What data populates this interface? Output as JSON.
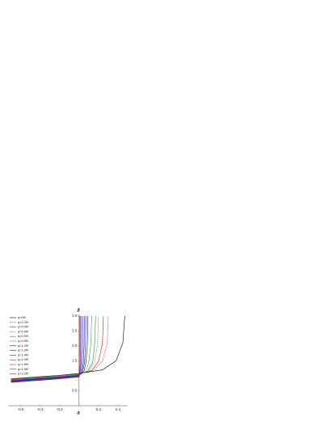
{
  "chart_data": {
    "type": "line",
    "x_label": "a",
    "y_label": "ã",
    "xlim": [
      -0.73,
      0.5
    ],
    "ylim": [
      0,
      3
    ],
    "xticks": [
      -0.6,
      -0.4,
      -0.2,
      0.2,
      0.4
    ],
    "yticks": [
      0.5,
      {
        "value": 1,
        "label": "1.0"
      },
      1.5,
      {
        "value": 2,
        "label": "2.0"
      },
      2.5,
      {
        "value": 3,
        "label": "3.0"
      }
    ],
    "legend": "upper left",
    "series": [
      {
        "name": "q=0M",
        "color": "#000000",
        "dashed": false,
        "x": [
          -0.7,
          -0.4,
          -0.2,
          0,
          0.24,
          0.38,
          0.45,
          0.47
        ],
        "values": [
          0.9,
          0.97,
          1.02,
          1.08,
          1.2,
          1.5,
          2.1,
          3.0
        ]
      },
      {
        "name": "q=0.2M",
        "color": "#d62020",
        "dashed": true,
        "x": [
          -0.7,
          -0.4,
          -0.2,
          0,
          0.15,
          0.24,
          0.29,
          0.3
        ],
        "values": [
          0.89,
          0.96,
          1.01,
          1.07,
          1.19,
          1.49,
          2.09,
          3.0
        ]
      },
      {
        "name": "q=0.4M",
        "color": "#c81e1e",
        "dashed": false,
        "x": [
          -0.7,
          -0.4,
          -0.2,
          0,
          0.13,
          0.2,
          0.24,
          0.25
        ],
        "values": [
          0.88,
          0.95,
          1.0,
          1.06,
          1.18,
          1.48,
          2.08,
          3.0
        ]
      },
      {
        "name": "q=0.5M",
        "color": "#2e9e3e",
        "dashed": true,
        "x": [
          -0.7,
          -0.4,
          -0.2,
          0,
          0.1,
          0.16,
          0.19,
          0.2
        ],
        "values": [
          0.87,
          0.94,
          0.99,
          1.05,
          1.17,
          1.47,
          2.07,
          3.0
        ]
      },
      {
        "name": "q=0.6M",
        "color": "#2a9a3a",
        "dashed": false,
        "x": [
          -0.7,
          -0.4,
          -0.2,
          0,
          0.09,
          0.14,
          0.16,
          0.17
        ],
        "values": [
          0.86,
          0.93,
          0.98,
          1.04,
          1.16,
          1.46,
          2.06,
          3.0
        ]
      },
      {
        "name": "q=0.8M",
        "color": "#3aaa4a",
        "dashed": false,
        "x": [
          -0.7,
          -0.4,
          -0.2,
          0,
          0.07,
          0.1,
          0.12,
          0.13
        ],
        "values": [
          0.85,
          0.92,
          0.97,
          1.03,
          1.15,
          1.45,
          2.05,
          3.0
        ]
      },
      {
        "name": "q=1.2M",
        "color": "#1a1a80",
        "dashed": false,
        "x": [
          -0.7,
          -0.4,
          -0.2,
          0,
          0.05,
          0.07,
          0.085,
          0.09
        ],
        "values": [
          0.84,
          0.91,
          0.96,
          1.02,
          1.14,
          1.44,
          2.04,
          3.0
        ]
      },
      {
        "name": "q=1.3M",
        "color": "#2020a0",
        "dashed": false,
        "x": [
          -0.7,
          -0.4,
          -0.2,
          0,
          0.035,
          0.056,
          0.067,
          0.07
        ],
        "values": [
          0.83,
          0.9,
          0.95,
          1.01,
          1.13,
          1.43,
          2.03,
          3.0
        ]
      },
      {
        "name": "q=1.4M",
        "color": "#2828c0",
        "dashed": false,
        "x": [
          -0.7,
          -0.4,
          -0.2,
          0,
          0.03,
          0.044,
          0.052,
          0.055
        ],
        "values": [
          0.82,
          0.89,
          0.94,
          1.0,
          1.12,
          1.42,
          2.02,
          3.0
        ]
      },
      {
        "name": "q=1.6M",
        "color": "#3030d8",
        "dashed": false,
        "x": [
          -0.7,
          -0.4,
          -0.2,
          0,
          0.02,
          0.032,
          0.038,
          0.04
        ],
        "values": [
          0.81,
          0.88,
          0.93,
          0.99,
          1.11,
          1.41,
          2.01,
          3.0
        ]
      },
      {
        "name": "q=1.8M",
        "color": "#3a3ae8",
        "dashed": false,
        "x": [
          -0.7,
          -0.4,
          -0.2,
          0,
          0.013,
          0.02,
          0.024,
          0.025
        ],
        "values": [
          0.8,
          0.87,
          0.92,
          0.98,
          1.1,
          1.4,
          2.0,
          3.0
        ]
      },
      {
        "name": "q=1.9M",
        "color": "#8a2040",
        "dashed": false,
        "x": [
          -0.7,
          -0.4,
          -0.2,
          0,
          0.008,
          0.012,
          0.014,
          0.015
        ],
        "values": [
          0.79,
          0.86,
          0.91,
          0.97,
          1.09,
          1.39,
          1.99,
          3.0
        ]
      },
      {
        "name": "q=2.2M",
        "color": "#a02030",
        "dashed": false,
        "x": [
          -0.7,
          -0.4,
          -0.2,
          0,
          0.003,
          0.004,
          0.0048,
          0.005
        ],
        "values": [
          0.78,
          0.85,
          0.9,
          0.96,
          1.08,
          1.38,
          1.98,
          3.0
        ]
      }
    ]
  }
}
